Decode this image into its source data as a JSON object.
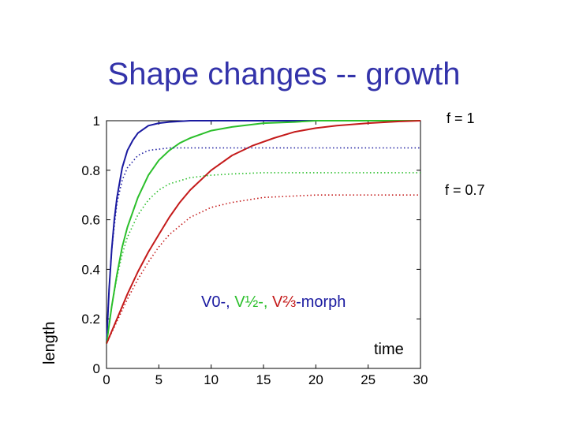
{
  "slide": {
    "title": "Shape changes -- growth"
  },
  "annotations": {
    "f1": "f = 1",
    "f07": "f = 0.7"
  },
  "legend_note": {
    "parts": [
      {
        "text": "V0-, ",
        "color": "#1a1aa0"
      },
      {
        "text": "V½-, ",
        "color": "#2bbf2b"
      },
      {
        "text": "V⅔",
        "color": "#c41a1a"
      },
      {
        "text": "-morph",
        "color": "#1a1aa0"
      }
    ]
  },
  "chart_data": {
    "type": "line",
    "title": "",
    "xlabel": "time",
    "ylabel": "length",
    "xlim": [
      0,
      30
    ],
    "ylim": [
      0,
      1
    ],
    "xticks": [
      0,
      5,
      10,
      15,
      20,
      25,
      30
    ],
    "yticks": [
      0,
      0.2,
      0.4,
      0.6,
      0.8,
      1
    ],
    "ytick_labels": [
      "0",
      "0.2",
      "0.4",
      "0.6",
      "0.8",
      "1"
    ],
    "grid": false,
    "series": [
      {
        "color": "#1a1aa0",
        "style": "solid",
        "x": [
          0,
          0.25,
          0.5,
          0.75,
          1,
          1.5,
          2,
          2.5,
          3,
          4,
          5,
          6,
          8,
          10,
          12,
          15,
          20,
          25,
          30
        ],
        "y": [
          0.1,
          0.32,
          0.48,
          0.6,
          0.69,
          0.81,
          0.88,
          0.92,
          0.95,
          0.98,
          0.99,
          0.995,
          1,
          1,
          1,
          1,
          1,
          1,
          1
        ]
      },
      {
        "color": "#2bbf2b",
        "style": "solid",
        "x": [
          0,
          0.5,
          1,
          1.5,
          2,
          3,
          4,
          5,
          6,
          7,
          8,
          10,
          12,
          15,
          18,
          20,
          25,
          30
        ],
        "y": [
          0.1,
          0.25,
          0.38,
          0.49,
          0.57,
          0.69,
          0.78,
          0.84,
          0.88,
          0.91,
          0.93,
          0.96,
          0.975,
          0.99,
          0.995,
          1,
          1,
          1
        ]
      },
      {
        "color": "#c41a1a",
        "style": "solid",
        "x": [
          0,
          1,
          2,
          3,
          4,
          5,
          6,
          7,
          8,
          10,
          12,
          14,
          16,
          18,
          20,
          22,
          25,
          28,
          30
        ],
        "y": [
          0.1,
          0.2,
          0.3,
          0.39,
          0.47,
          0.54,
          0.61,
          0.67,
          0.72,
          0.8,
          0.86,
          0.9,
          0.93,
          0.955,
          0.97,
          0.98,
          0.99,
          0.997,
          1
        ]
      },
      {
        "color": "#1a1aa0",
        "style": "dotted",
        "x": [
          0,
          0.25,
          0.5,
          1,
          1.5,
          2,
          3,
          4,
          5,
          6,
          8,
          10,
          15,
          20,
          25,
          30
        ],
        "y": [
          0.1,
          0.32,
          0.48,
          0.67,
          0.76,
          0.81,
          0.86,
          0.88,
          0.885,
          0.89,
          0.89,
          0.89,
          0.89,
          0.89,
          0.89,
          0.89
        ]
      },
      {
        "color": "#2bbf2b",
        "style": "dotted",
        "x": [
          0,
          0.5,
          1,
          1.5,
          2,
          3,
          4,
          5,
          6,
          8,
          10,
          12,
          15,
          20,
          25,
          30
        ],
        "y": [
          0.1,
          0.25,
          0.37,
          0.46,
          0.53,
          0.62,
          0.68,
          0.72,
          0.745,
          0.77,
          0.78,
          0.785,
          0.79,
          0.79,
          0.79,
          0.79
        ]
      },
      {
        "color": "#c41a1a",
        "style": "dotted",
        "x": [
          0,
          1,
          2,
          3,
          4,
          5,
          6,
          8,
          10,
          12,
          15,
          20,
          25,
          30
        ],
        "y": [
          0.1,
          0.19,
          0.28,
          0.36,
          0.43,
          0.49,
          0.54,
          0.61,
          0.65,
          0.67,
          0.69,
          0.7,
          0.7,
          0.7
        ]
      }
    ]
  }
}
